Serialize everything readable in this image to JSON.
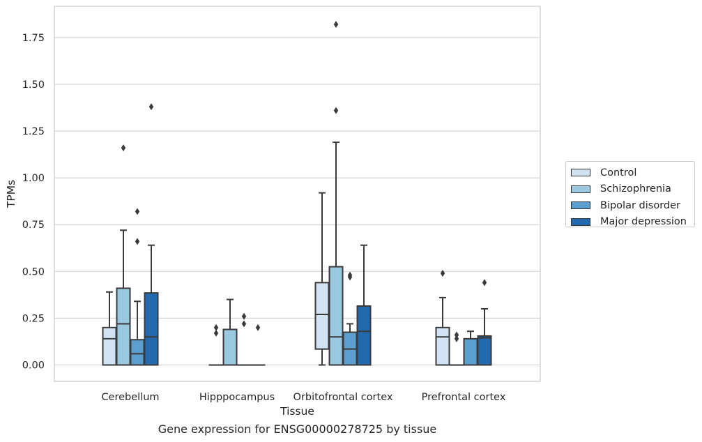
{
  "caption": "Gene expression for ENSG00000278725 by tissue",
  "chart_data": {
    "type": "boxplot",
    "xlabel": "Tissue",
    "ylabel": "TPMs",
    "ylim": [
      -0.09,
      1.92
    ],
    "yticks": [
      "0.00",
      "0.25",
      "0.50",
      "0.75",
      "1.00",
      "1.25",
      "1.50",
      "1.75"
    ],
    "ytick_values": [
      0,
      0.25,
      0.5,
      0.75,
      1.0,
      1.25,
      1.5,
      1.75
    ],
    "grid": "horizontal",
    "legend_position": "right",
    "categories": [
      "Cerebellum",
      "Hipppocampus",
      "Orbitofrontal cortex",
      "Prefrontal cortex"
    ],
    "series": [
      {
        "name": "Control",
        "color": "#d1e2f2",
        "boxes": [
          {
            "q1": 0,
            "median": 0.14,
            "q3": 0.2,
            "whisker_low": 0,
            "whisker_high": 0.39,
            "outliers": []
          },
          {
            "q1": 0,
            "median": 0,
            "q3": 0,
            "whisker_low": 0,
            "whisker_high": 0,
            "outliers": [
              0.17,
              0.2
            ]
          },
          {
            "q1": 0.085,
            "median": 0.27,
            "q3": 0.44,
            "whisker_low": 0,
            "whisker_high": 0.92,
            "outliers": []
          },
          {
            "q1": 0,
            "median": 0.15,
            "q3": 0.2,
            "whisker_low": 0,
            "whisker_high": 0.36,
            "outliers": [
              0.49
            ]
          }
        ]
      },
      {
        "name": "Schizophrenia",
        "color": "#9ac8e0",
        "boxes": [
          {
            "q1": 0,
            "median": 0.22,
            "q3": 0.41,
            "whisker_low": 0,
            "whisker_high": 0.72,
            "outliers": [
              1.16
            ]
          },
          {
            "q1": 0,
            "median": 0,
            "q3": 0.19,
            "whisker_low": 0,
            "whisker_high": 0.35,
            "outliers": []
          },
          {
            "q1": 0,
            "median": 0.15,
            "q3": 0.525,
            "whisker_low": 0,
            "whisker_high": 1.19,
            "outliers": [
              1.36,
              1.82
            ]
          },
          {
            "q1": 0,
            "median": 0,
            "q3": 0,
            "whisker_low": 0,
            "whisker_high": 0,
            "outliers": [
              0.14,
              0.16
            ]
          }
        ]
      },
      {
        "name": "Bipolar disorder",
        "color": "#5a9fcd",
        "boxes": [
          {
            "q1": 0,
            "median": 0.06,
            "q3": 0.135,
            "whisker_low": 0,
            "whisker_high": 0.34,
            "outliers": [
              0.66,
              0.82
            ]
          },
          {
            "q1": 0,
            "median": 0,
            "q3": 0,
            "whisker_low": 0,
            "whisker_high": 0,
            "outliers": [
              0.22,
              0.26
            ]
          },
          {
            "q1": 0,
            "median": 0.085,
            "q3": 0.175,
            "whisker_low": 0,
            "whisker_high": 0.22,
            "outliers": [
              0.47,
              0.48
            ]
          },
          {
            "q1": 0,
            "median": 0.14,
            "q3": 0.14,
            "whisker_low": 0,
            "whisker_high": 0.18,
            "outliers": []
          }
        ]
      },
      {
        "name": "Major depression",
        "color": "#2369ad",
        "boxes": [
          {
            "q1": 0,
            "median": 0.15,
            "q3": 0.385,
            "whisker_low": 0,
            "whisker_high": 0.64,
            "outliers": [
              1.38
            ]
          },
          {
            "q1": 0,
            "median": 0,
            "q3": 0,
            "whisker_low": 0,
            "whisker_high": 0,
            "outliers": [
              0.2
            ]
          },
          {
            "q1": 0,
            "median": 0.18,
            "q3": 0.315,
            "whisker_low": 0,
            "whisker_high": 0.64,
            "outliers": []
          },
          {
            "q1": 0,
            "median": 0.145,
            "q3": 0.155,
            "whisker_low": 0,
            "whisker_high": 0.3,
            "outliers": [
              0.44
            ]
          }
        ]
      }
    ]
  }
}
